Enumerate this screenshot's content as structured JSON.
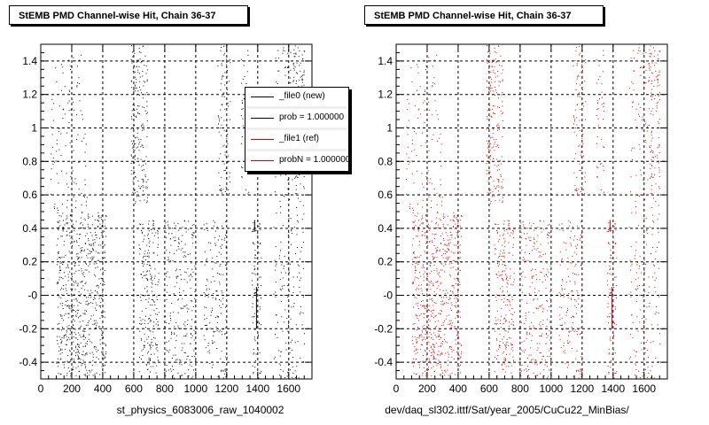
{
  "chart_data": [
    {
      "type": "scatter",
      "title": "StEMB PMD Channel-wise Hit, Chain 36-37",
      "xlabel": "st_physics_6083006_raw_1040002",
      "ylabel": "",
      "xlim": [
        0,
        1750
      ],
      "ylim": [
        -0.5,
        1.5
      ],
      "xticks": [
        "0",
        "200",
        "400",
        "600",
        "800",
        "1000",
        "1200",
        "1400",
        "1600"
      ],
      "yticks": [
        "-0.4",
        "-0.2",
        "-0",
        "0.2",
        "0.4",
        "0.6",
        "0.8",
        "1",
        "1.2",
        "1.4"
      ],
      "grid": true,
      "marker_color": "#000000",
      "legend_placement": "top-right",
      "legend": [
        {
          "label": "_file0 (new)",
          "color": "#000000"
        },
        {
          "label": "prob = 1.000000",
          "color": "#000000"
        },
        {
          "label": "_file1 (ref)",
          "color": "#cc0000"
        },
        {
          "label": "probN = 1.000000",
          "color": "#cc0000"
        }
      ],
      "bands": [
        {
          "x": [
            100,
            420
          ],
          "y": [
            -0.48,
            0.5
          ],
          "n": 650
        },
        {
          "x": [
            60,
            300
          ],
          "y": [
            0.5,
            1.45
          ],
          "n": 110
        },
        {
          "x": [
            580,
            690
          ],
          "y": [
            0.55,
            1.5
          ],
          "n": 190
        },
        {
          "x": [
            630,
            760
          ],
          "y": [
            -0.5,
            0.45
          ],
          "n": 220
        },
        {
          "x": [
            800,
            1000
          ],
          "y": [
            -0.5,
            0.45
          ],
          "n": 230
        },
        {
          "x": [
            1050,
            1200
          ],
          "y": [
            -0.5,
            0.45
          ],
          "n": 160
        },
        {
          "x": [
            1140,
            1220
          ],
          "y": [
            0.6,
            1.5
          ],
          "n": 90
        },
        {
          "x": [
            1290,
            1340
          ],
          "y": [
            0.6,
            1.5
          ],
          "n": 45
        },
        {
          "x": [
            1360,
            1420
          ],
          "y": [
            -0.5,
            0.45
          ],
          "n": 90
        },
        {
          "x": [
            1500,
            1700
          ],
          "y": [
            -0.5,
            1.5
          ],
          "n": 260
        },
        {
          "x": [
            1630,
            1700
          ],
          "y": [
            0.7,
            1.5
          ],
          "n": 80
        }
      ],
      "lines": [
        {
          "x": 1392,
          "y": [
            -0.2,
            0.05
          ]
        },
        {
          "x": 1380,
          "y": [
            0.38,
            0.45
          ]
        }
      ]
    },
    {
      "type": "scatter",
      "title": "StEMB PMD Channel-wise Hit, Chain 36-37",
      "xlabel": "dev/daq_sl302.ittf/Sat/year_2005/CuCu22_MinBias/",
      "ylabel": "",
      "xlim": [
        0,
        1750
      ],
      "ylim": [
        -0.5,
        1.5
      ],
      "xticks": [
        "0",
        "200",
        "400",
        "600",
        "800",
        "1000",
        "1200",
        "1400",
        "1600"
      ],
      "yticks": [
        "-0.4",
        "-0.2",
        "-0",
        "0.2",
        "0.4",
        "0.6",
        "0.8",
        "1",
        "1.2",
        "1.4"
      ],
      "grid": true,
      "marker_color": "#cc0000",
      "bands": [
        {
          "x": [
            100,
            420
          ],
          "y": [
            -0.48,
            0.5
          ],
          "n": 650
        },
        {
          "x": [
            60,
            300
          ],
          "y": [
            0.5,
            1.45
          ],
          "n": 110
        },
        {
          "x": [
            580,
            690
          ],
          "y": [
            0.55,
            1.5
          ],
          "n": 190
        },
        {
          "x": [
            630,
            760
          ],
          "y": [
            -0.5,
            0.45
          ],
          "n": 220
        },
        {
          "x": [
            800,
            1000
          ],
          "y": [
            -0.5,
            0.45
          ],
          "n": 230
        },
        {
          "x": [
            1050,
            1200
          ],
          "y": [
            -0.5,
            0.45
          ],
          "n": 160
        },
        {
          "x": [
            1140,
            1220
          ],
          "y": [
            0.6,
            1.5
          ],
          "n": 90
        },
        {
          "x": [
            1290,
            1340
          ],
          "y": [
            0.6,
            1.5
          ],
          "n": 45
        },
        {
          "x": [
            1360,
            1420
          ],
          "y": [
            -0.5,
            0.45
          ],
          "n": 90
        },
        {
          "x": [
            1500,
            1700
          ],
          "y": [
            -0.5,
            1.5
          ],
          "n": 260
        },
        {
          "x": [
            1630,
            1700
          ],
          "y": [
            0.7,
            1.5
          ],
          "n": 80
        }
      ],
      "lines": [
        {
          "x": 1392,
          "y": [
            -0.2,
            0.05
          ]
        },
        {
          "x": 1380,
          "y": [
            0.38,
            0.45
          ]
        }
      ]
    }
  ]
}
